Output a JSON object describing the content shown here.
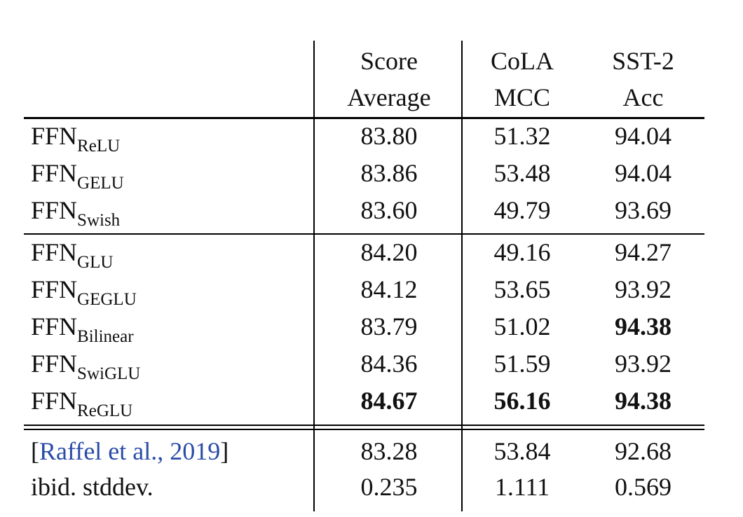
{
  "headers": {
    "score": {
      "line1": "Score",
      "line2": "Average"
    },
    "cola": {
      "line1": "CoLA",
      "line2": "MCC"
    },
    "sst2": {
      "line1": "SST-2",
      "line2": "Acc"
    }
  },
  "rows": [
    {
      "base": "FFN",
      "sub": "ReLU",
      "score": "83.80",
      "cola": "51.32",
      "sst2": "94.04"
    },
    {
      "base": "FFN",
      "sub": "GELU",
      "score": "83.86",
      "cola": "53.48",
      "sst2": "94.04"
    },
    {
      "base": "FFN",
      "sub": "Swish",
      "score": "83.60",
      "cola": "49.79",
      "sst2": "93.69"
    },
    {
      "base": "FFN",
      "sub": "GLU",
      "score": "84.20",
      "cola": "49.16",
      "sst2": "94.27"
    },
    {
      "base": "FFN",
      "sub": "GEGLU",
      "score": "84.12",
      "cola": "53.65",
      "sst2": "93.92"
    },
    {
      "base": "FFN",
      "sub": "Bilinear",
      "score": "83.79",
      "cola": "51.02",
      "sst2": "94.38"
    },
    {
      "base": "FFN",
      "sub": "SwiGLU",
      "score": "84.36",
      "cola": "51.59",
      "sst2": "93.92"
    },
    {
      "base": "FFN",
      "sub": "ReGLU",
      "score": "84.67",
      "cola": "56.16",
      "sst2": "94.38"
    }
  ],
  "reference": {
    "open_bracket": "[",
    "citation": "Raffel et al., 2019",
    "close_bracket": "]",
    "score": "83.28",
    "cola": "53.84",
    "sst2": "92.68"
  },
  "stddev": {
    "label": "ibid. stddev.",
    "score": "0.235",
    "cola": "1.111",
    "sst2": "0.569"
  },
  "bold_cells": [
    {
      "row": 5,
      "col": "sst2"
    },
    {
      "row": 7,
      "col": "score"
    },
    {
      "row": 7,
      "col": "cola"
    },
    {
      "row": 7,
      "col": "sst2"
    }
  ],
  "colors": {
    "text": "#111111",
    "citation": "#2a4ba8",
    "rules": "#000000"
  }
}
